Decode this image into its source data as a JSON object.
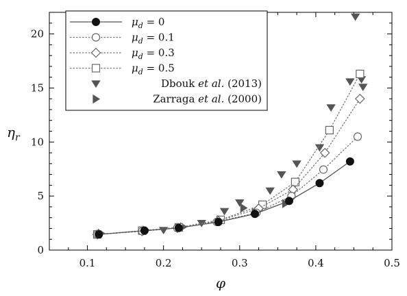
{
  "chart_data": {
    "type": "line",
    "xlabel": "φ",
    "ylabel_main": "η",
    "ylabel_sub": "r",
    "xlim": [
      0.05,
      0.5
    ],
    "ylim": [
      0,
      22
    ],
    "xticks": [
      0.1,
      0.2,
      0.3,
      0.4,
      0.5
    ],
    "xtick_labels": [
      "0.1",
      "0.2",
      "0.3",
      "0.4",
      "0.5"
    ],
    "yticks": [
      0,
      5,
      10,
      15,
      20
    ],
    "ytick_labels": [
      "0",
      "5",
      "10",
      "15",
      "20"
    ],
    "grid": false,
    "legend_position": "top-left",
    "series": [
      {
        "name_symbol": "μ",
        "name_sub": "d",
        "name_rest": " = 0",
        "style": "solid",
        "marker": "filled-circle",
        "color": "#222222",
        "line_color": "#555555",
        "x": [
          0.115,
          0.175,
          0.22,
          0.272,
          0.32,
          0.365,
          0.405,
          0.445
        ],
        "y": [
          1.45,
          1.8,
          2.05,
          2.6,
          3.35,
          4.55,
          6.2,
          8.2
        ]
      },
      {
        "name_symbol": "μ",
        "name_sub": "d",
        "name_rest": " = 0.1",
        "style": "dotted",
        "marker": "open-circle",
        "color": "#666666",
        "line_color": "#777777",
        "x": [
          0.113,
          0.172,
          0.218,
          0.27,
          0.322,
          0.368,
          0.41,
          0.455
        ],
        "y": [
          1.45,
          1.75,
          2.05,
          2.6,
          3.45,
          5.0,
          7.45,
          10.5
        ]
      },
      {
        "name_symbol": "μ",
        "name_sub": "d",
        "name_rest": " = 0.3",
        "style": "dotted",
        "marker": "open-diamond",
        "color": "#666666",
        "line_color": "#777777",
        "x": [
          0.113,
          0.172,
          0.218,
          0.272,
          0.325,
          0.37,
          0.412,
          0.458
        ],
        "y": [
          1.45,
          1.75,
          2.05,
          2.7,
          3.85,
          5.6,
          9.0,
          14.0
        ]
      },
      {
        "name_symbol": "μ",
        "name_sub": "d",
        "name_rest": " = 0.5",
        "style": "dotted",
        "marker": "open-square",
        "color": "#666666",
        "line_color": "#777777",
        "x": [
          0.113,
          0.172,
          0.22,
          0.275,
          0.33,
          0.373,
          0.418,
          0.458
        ],
        "y": [
          1.45,
          1.8,
          2.1,
          2.8,
          4.2,
          6.3,
          11.1,
          16.3
        ]
      },
      {
        "name_text": "Dbouk ",
        "name_italic": "et al.",
        "name_tail": " (2013)",
        "style": "none",
        "marker": "down-triangle",
        "color": "#555555",
        "x": [
          0.2,
          0.25,
          0.28,
          0.3,
          0.34,
          0.355,
          0.375,
          0.405,
          0.42,
          0.445,
          0.452,
          0.46,
          0.462
        ],
        "y": [
          1.85,
          2.5,
          3.6,
          4.4,
          5.5,
          7.0,
          8.0,
          9.5,
          13.2,
          15.6,
          21.6,
          15.8,
          15.1
        ]
      },
      {
        "name_text": "Zarraga ",
        "name_italic": "et al.",
        "name_tail": " (2000)",
        "style": "none",
        "marker": "right-triangle",
        "color": "#555555",
        "x": [
          0.118,
          0.177,
          0.226,
          0.275,
          0.305,
          0.32,
          0.36
        ],
        "y": [
          1.55,
          1.85,
          2.15,
          2.8,
          3.9,
          3.5,
          4.3
        ]
      }
    ]
  }
}
